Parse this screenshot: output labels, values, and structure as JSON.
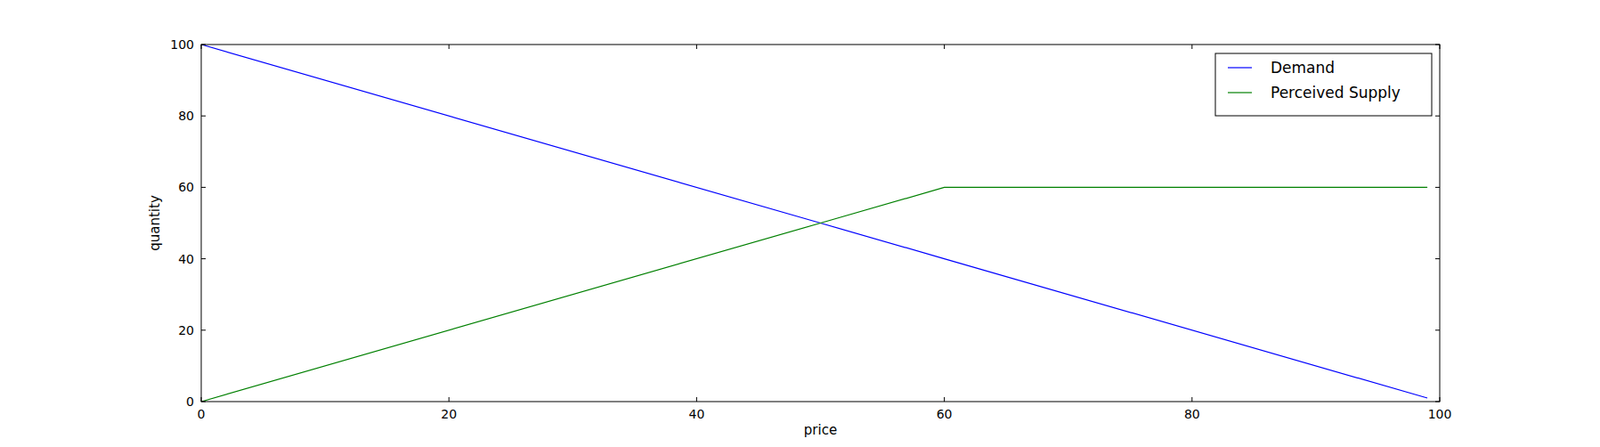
{
  "chart_data": {
    "type": "line",
    "x_label": "price",
    "y_label": "quantity",
    "x": [
      0,
      50,
      60,
      99
    ],
    "series": [
      {
        "name": "Demand",
        "color": "#0000ff",
        "values": [
          100,
          50,
          40,
          1
        ]
      },
      {
        "name": "Perceived Supply",
        "color": "#008000",
        "values": [
          0,
          50,
          60,
          60
        ]
      }
    ],
    "xlim": [
      0,
      100
    ],
    "xticks": [
      0,
      20,
      40,
      60,
      80,
      100
    ],
    "ylim": [
      0,
      100
    ],
    "yticks": [
      0,
      20,
      40,
      60,
      80,
      100
    ],
    "grid": false,
    "legend": "upper right"
  }
}
